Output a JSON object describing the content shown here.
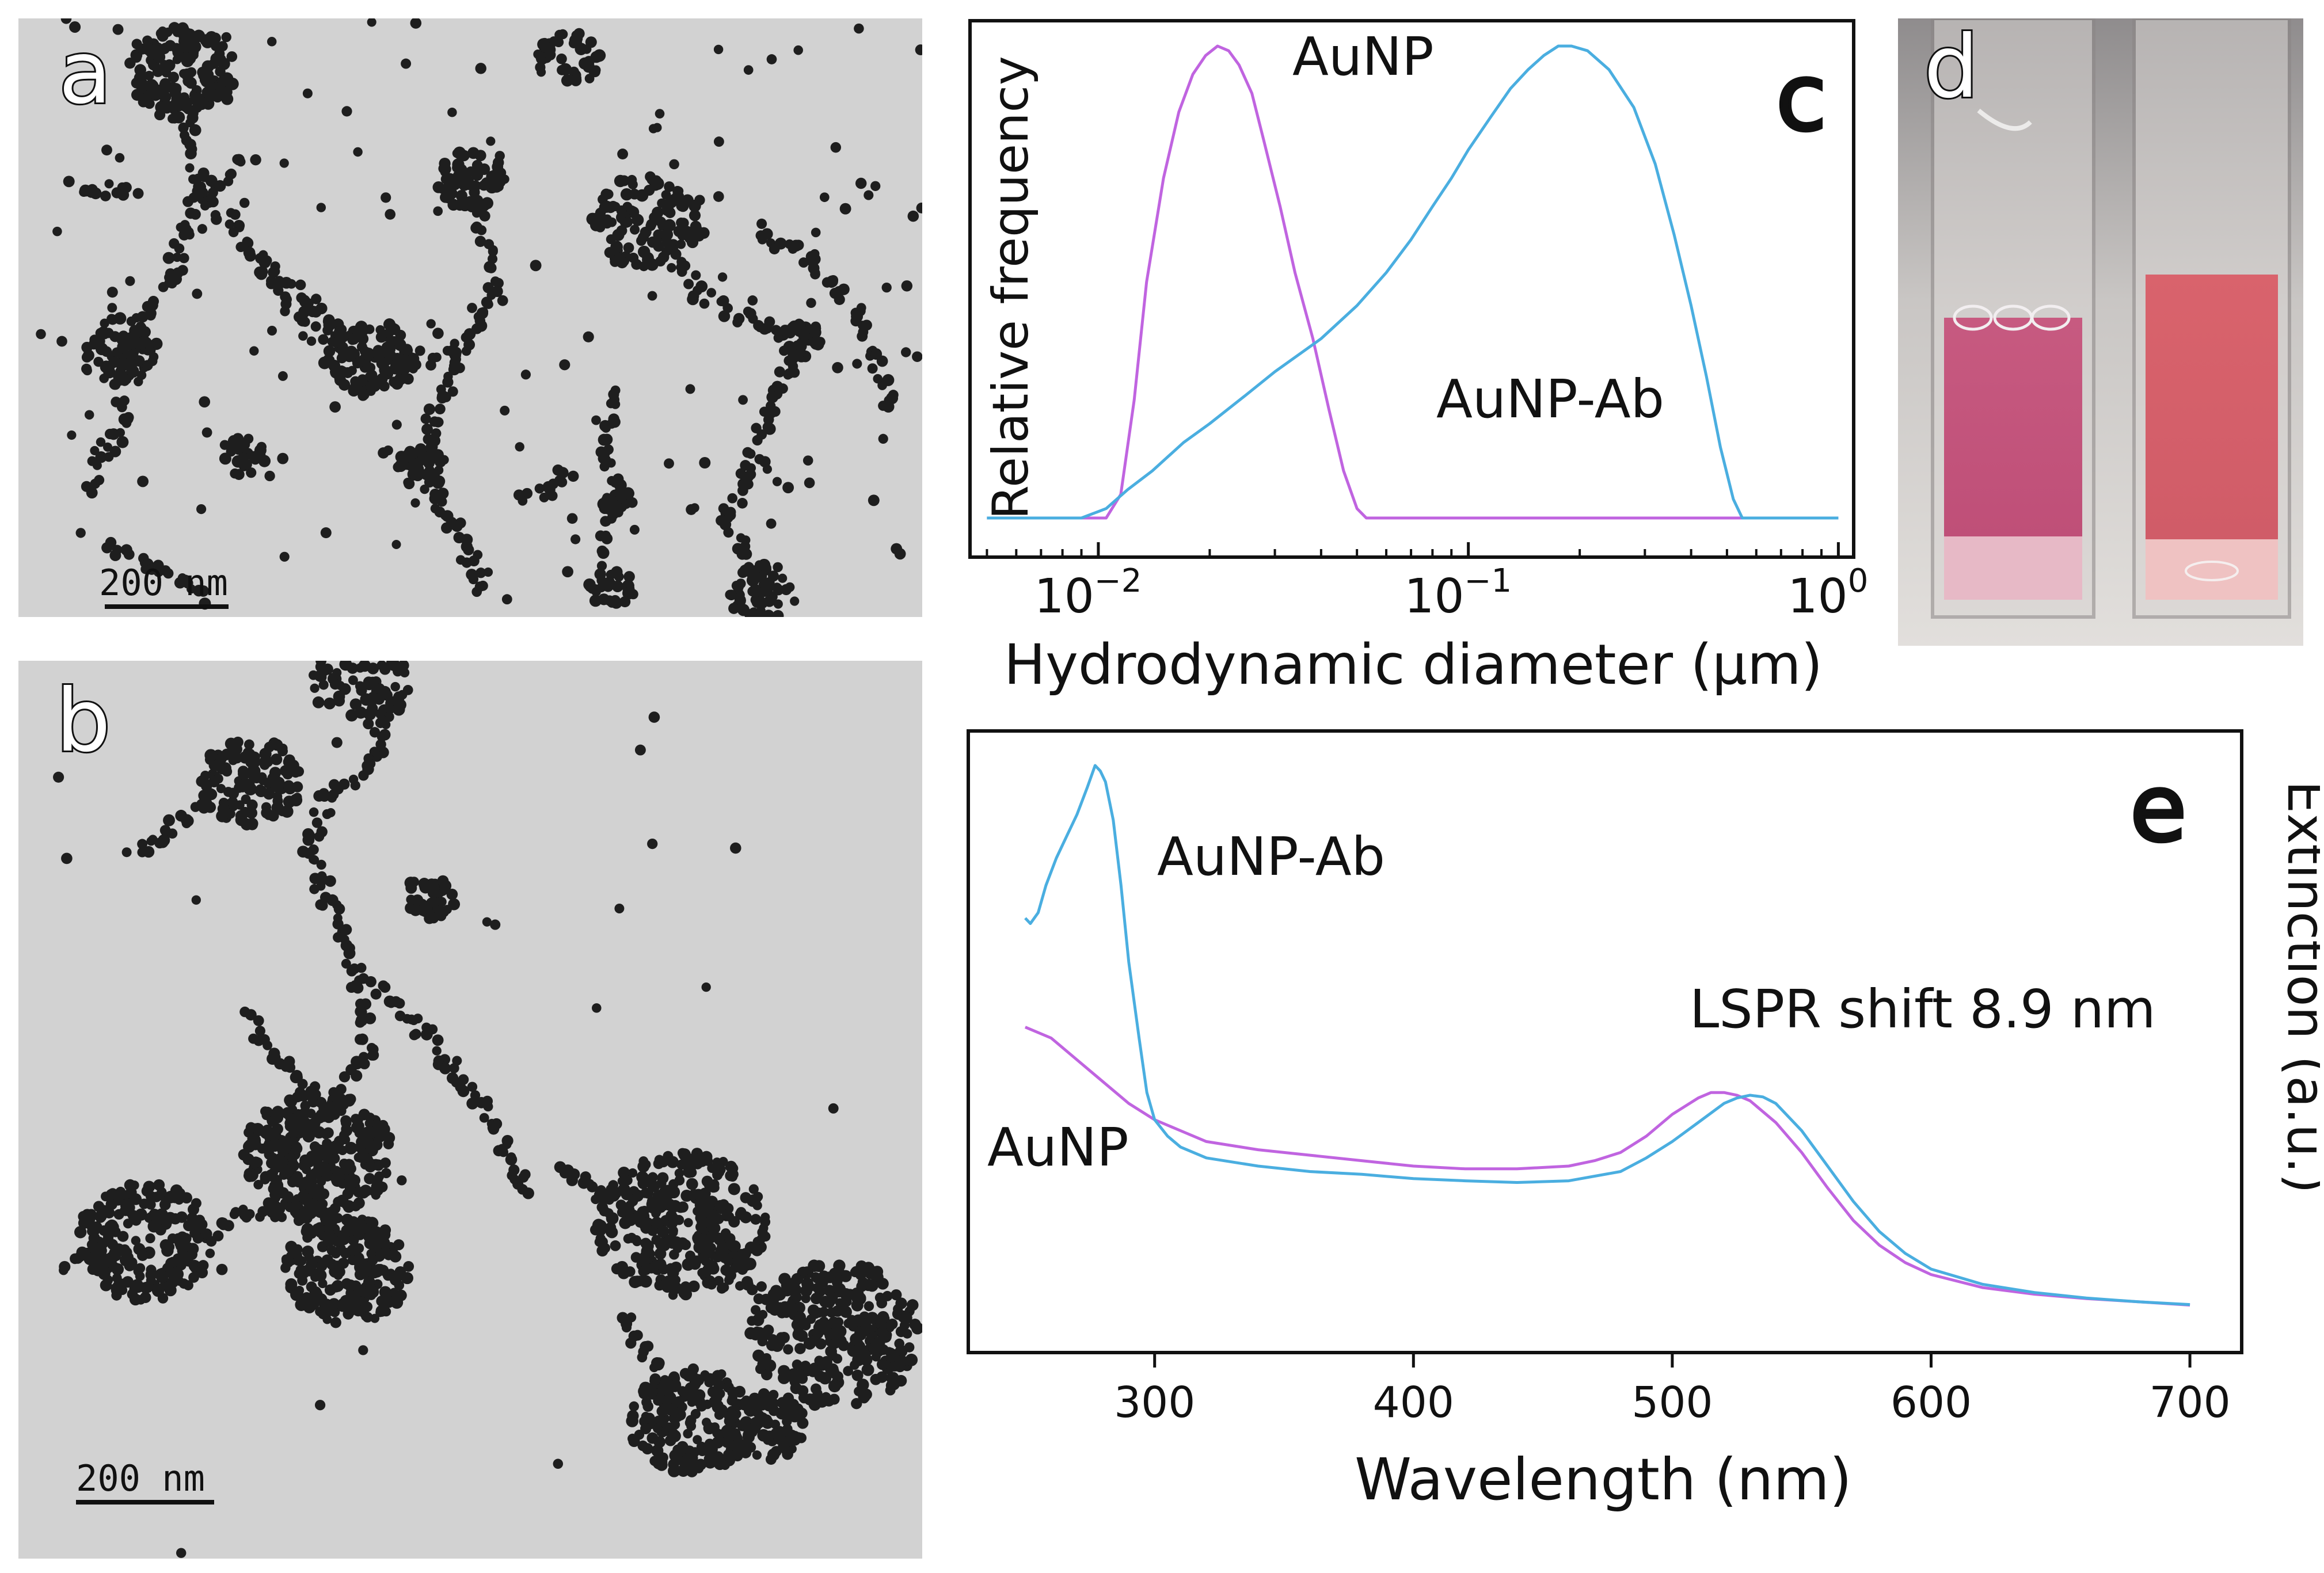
{
  "panels": {
    "a": {
      "letter": "a",
      "scale_bar": "200 nm"
    },
    "b": {
      "letter": "b",
      "scale_bar": "200 nm"
    },
    "c": {
      "letter": "c"
    },
    "d": {
      "letter": "d"
    },
    "e": {
      "letter": "e"
    }
  },
  "colors": {
    "aunp": "#c064e0",
    "aunp_ab": "#4aaee0",
    "axis": "#111111",
    "tem_bg": "#d2d2d2",
    "particle": "#1e1e1e"
  },
  "chart_data": [
    {
      "panel": "c",
      "type": "line",
      "xscale": "log",
      "xlabel": "Hydrodynamic diameter (µm)",
      "ylabel": "Relative frequency",
      "xlim": [
        0.0045,
        1.1
      ],
      "ylim": [
        0,
        1.05
      ],
      "xticks": [
        {
          "value": 0.01,
          "base": "10",
          "exp": "−2"
        },
        {
          "value": 0.1,
          "base": "10",
          "exp": "−1"
        },
        {
          "value": 1,
          "base": "10",
          "exp": "0"
        }
      ],
      "series": [
        {
          "name": "AuNP",
          "color": "#c064e0",
          "x": [
            0.005,
            0.0105,
            0.0115,
            0.0125,
            0.0135,
            0.015,
            0.0165,
            0.018,
            0.0195,
            0.021,
            0.0225,
            0.024,
            0.026,
            0.028,
            0.031,
            0.034,
            0.038,
            0.042,
            0.046,
            0.05,
            0.053,
            0.06,
            1.0
          ],
          "y": [
            0,
            0,
            0.05,
            0.25,
            0.5,
            0.72,
            0.86,
            0.94,
            0.98,
            1.0,
            0.99,
            0.96,
            0.9,
            0.8,
            0.66,
            0.52,
            0.38,
            0.23,
            0.1,
            0.02,
            0,
            0,
            0
          ]
        },
        {
          "name": "AuNP-Ab",
          "color": "#4aaee0",
          "x": [
            0.005,
            0.009,
            0.0105,
            0.012,
            0.014,
            0.017,
            0.02,
            0.025,
            0.03,
            0.04,
            0.05,
            0.06,
            0.07,
            0.08,
            0.09,
            0.1,
            0.115,
            0.13,
            0.145,
            0.16,
            0.175,
            0.19,
            0.21,
            0.24,
            0.28,
            0.32,
            0.36,
            0.4,
            0.44,
            0.48,
            0.52,
            0.55,
            1.0
          ],
          "y": [
            0,
            0,
            0.02,
            0.06,
            0.1,
            0.16,
            0.2,
            0.26,
            0.31,
            0.38,
            0.45,
            0.52,
            0.59,
            0.66,
            0.72,
            0.78,
            0.85,
            0.91,
            0.95,
            0.98,
            1.0,
            1.0,
            0.99,
            0.95,
            0.87,
            0.75,
            0.6,
            0.45,
            0.3,
            0.15,
            0.04,
            0,
            0
          ]
        }
      ],
      "annotations": [
        {
          "text": "AuNP",
          "x": 0.03,
          "y": 0.97
        },
        {
          "text": "AuNP-Ab",
          "x": 0.085,
          "y": 0.25
        }
      ]
    },
    {
      "panel": "e",
      "type": "line",
      "xlabel": "Wavelength (nm)",
      "ylabel": "Extinction (a.u.)",
      "xlim": [
        228,
        720
      ],
      "ylim": [
        0,
        1.05
      ],
      "xticks": [
        300,
        400,
        500,
        600,
        700
      ],
      "series": [
        {
          "name": "AuNP",
          "color": "#c064e0",
          "x": [
            250,
            260,
            270,
            280,
            290,
            300,
            310,
            320,
            340,
            360,
            380,
            400,
            420,
            440,
            460,
            470,
            480,
            490,
            500,
            510,
            515,
            520,
            525,
            530,
            540,
            550,
            560,
            570,
            580,
            590,
            600,
            620,
            640,
            660,
            680,
            700
          ],
          "y": [
            0.52,
            0.5,
            0.46,
            0.42,
            0.38,
            0.35,
            0.33,
            0.31,
            0.295,
            0.285,
            0.275,
            0.265,
            0.26,
            0.26,
            0.265,
            0.275,
            0.29,
            0.32,
            0.36,
            0.39,
            0.4,
            0.4,
            0.395,
            0.385,
            0.345,
            0.29,
            0.225,
            0.165,
            0.12,
            0.088,
            0.066,
            0.042,
            0.03,
            0.022,
            0.016,
            0.01
          ]
        },
        {
          "name": "AuNP-Ab",
          "color": "#4aaee0",
          "x": [
            250,
            252,
            255,
            258,
            262,
            266,
            270,
            274,
            277,
            279,
            281,
            284,
            287,
            290,
            294,
            297,
            300,
            305,
            310,
            320,
            340,
            360,
            380,
            400,
            420,
            440,
            460,
            480,
            490,
            500,
            510,
            520,
            525,
            530,
            535,
            540,
            550,
            560,
            570,
            580,
            590,
            600,
            620,
            640,
            660,
            680,
            700
          ],
          "y": [
            0.72,
            0.71,
            0.73,
            0.78,
            0.83,
            0.87,
            0.91,
            0.96,
            1.0,
            0.99,
            0.97,
            0.9,
            0.78,
            0.64,
            0.5,
            0.4,
            0.35,
            0.32,
            0.3,
            0.28,
            0.265,
            0.255,
            0.25,
            0.242,
            0.238,
            0.235,
            0.238,
            0.255,
            0.28,
            0.31,
            0.345,
            0.38,
            0.39,
            0.395,
            0.392,
            0.38,
            0.33,
            0.265,
            0.2,
            0.145,
            0.105,
            0.076,
            0.048,
            0.033,
            0.023,
            0.016,
            0.011
          ]
        }
      ],
      "annotations": [
        {
          "text": "AuNP-Ab",
          "x": 292,
          "y": 0.8
        },
        {
          "text": "AuNP",
          "x": 233,
          "y": 0.24
        },
        {
          "text": "LSPR shift 8.9 nm",
          "x": 508,
          "y": 0.54
        }
      ]
    }
  ]
}
